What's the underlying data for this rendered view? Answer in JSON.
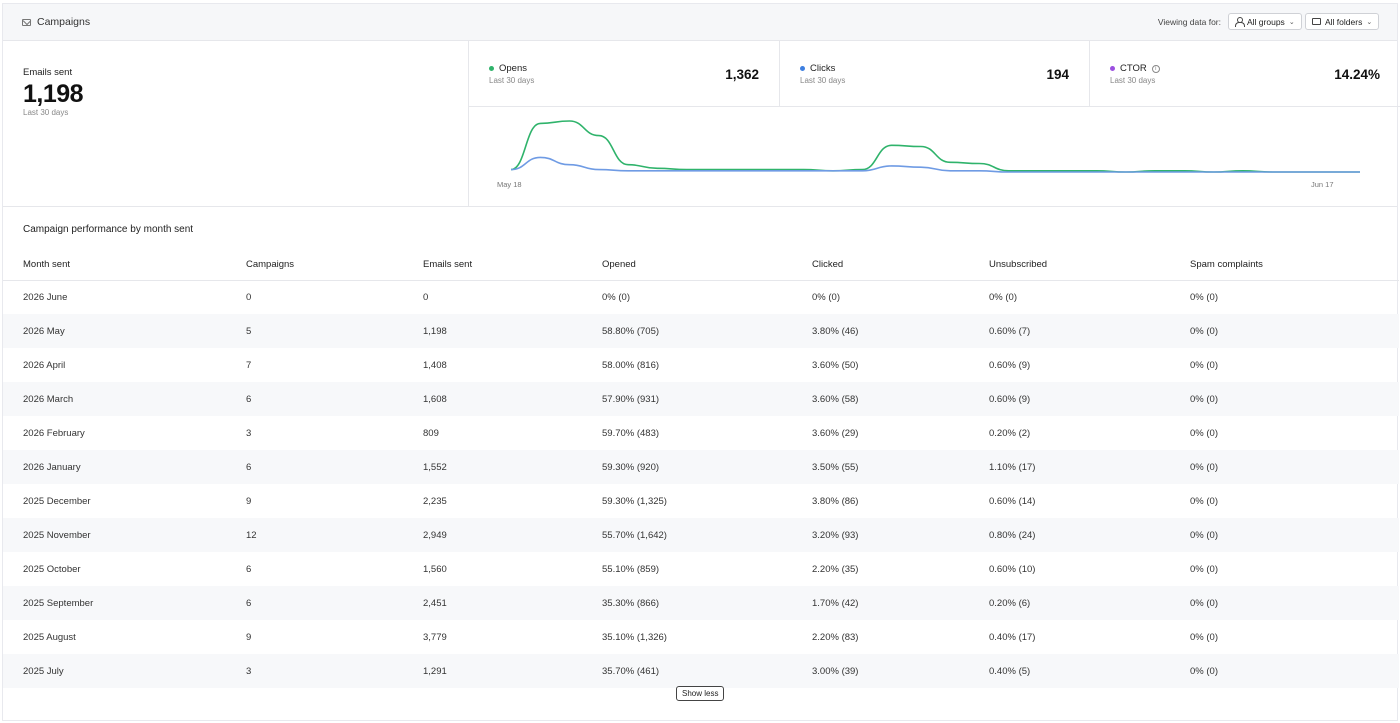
{
  "header": {
    "title": "Campaigns",
    "viewing_label": "Viewing data for:",
    "groups_label": "All groups",
    "folders_label": "All folders"
  },
  "summary": {
    "label": "Emails sent",
    "value": "1,198",
    "period": "Last 30 days"
  },
  "metrics": [
    {
      "name": "Opens",
      "period": "Last 30 days",
      "value": "1,362",
      "color": "#2fb36b"
    },
    {
      "name": "Clicks",
      "period": "Last 30 days",
      "value": "194",
      "color": "#3d7fe0"
    },
    {
      "name": "CTOR",
      "period": "Last 30 days",
      "value": "14.24%",
      "color": "#9b4fe0",
      "info_icon": "info-icon"
    }
  ],
  "chart_data": {
    "type": "line",
    "x_start_label": "May 18",
    "x_end_label": "Jun 17",
    "series": [
      {
        "color": "#2fb36b",
        "values": [
          2,
          40,
          42,
          30,
          6,
          3,
          2,
          2,
          2,
          2,
          2,
          1,
          2,
          22,
          21,
          8,
          7,
          1,
          1,
          1,
          1,
          0,
          1,
          1,
          0,
          1,
          0,
          0,
          0,
          0
        ]
      },
      {
        "color": "#6f9be4",
        "values": [
          2,
          12,
          6,
          2,
          1,
          1,
          1,
          1,
          1,
          1,
          1,
          1,
          1,
          5,
          4,
          1,
          1,
          0,
          0,
          0,
          0,
          0,
          0,
          0,
          0,
          0,
          0,
          0,
          0,
          0
        ]
      }
    ]
  },
  "table": {
    "title": "Campaign performance by month sent",
    "columns": [
      "Month sent",
      "Campaigns",
      "Emails sent",
      "Opened",
      "Clicked",
      "Unsubscribed",
      "Spam complaints"
    ],
    "rows": [
      [
        "2026 June",
        "0",
        "0",
        "0% (0)",
        "0% (0)",
        "0% (0)",
        "0% (0)"
      ],
      [
        "2026 May",
        "5",
        "1,198",
        "58.80% (705)",
        "3.80% (46)",
        "0.60% (7)",
        "0% (0)"
      ],
      [
        "2026 April",
        "7",
        "1,408",
        "58.00% (816)",
        "3.60% (50)",
        "0.60% (9)",
        "0% (0)"
      ],
      [
        "2026 March",
        "6",
        "1,608",
        "57.90% (931)",
        "3.60% (58)",
        "0.60% (9)",
        "0% (0)"
      ],
      [
        "2026 February",
        "3",
        "809",
        "59.70% (483)",
        "3.60% (29)",
        "0.20% (2)",
        "0% (0)"
      ],
      [
        "2026 January",
        "6",
        "1,552",
        "59.30% (920)",
        "3.50% (55)",
        "1.10% (17)",
        "0% (0)"
      ],
      [
        "2025 December",
        "9",
        "2,235",
        "59.30% (1,325)",
        "3.80% (86)",
        "0.60% (14)",
        "0% (0)"
      ],
      [
        "2025 November",
        "12",
        "2,949",
        "55.70% (1,642)",
        "3.20% (93)",
        "0.80% (24)",
        "0% (0)"
      ],
      [
        "2025 October",
        "6",
        "1,560",
        "55.10% (859)",
        "2.20% (35)",
        "0.60% (10)",
        "0% (0)"
      ],
      [
        "2025 September",
        "6",
        "2,451",
        "35.30% (866)",
        "1.70% (42)",
        "0.20% (6)",
        "0% (0)"
      ],
      [
        "2025 August",
        "9",
        "3,779",
        "35.10% (1,326)",
        "2.20% (83)",
        "0.40% (17)",
        "0% (0)"
      ],
      [
        "2025 July",
        "3",
        "1,291",
        "35.70% (461)",
        "3.00% (39)",
        "0.40% (5)",
        "0% (0)"
      ]
    ]
  },
  "show_less_label": "Show less"
}
